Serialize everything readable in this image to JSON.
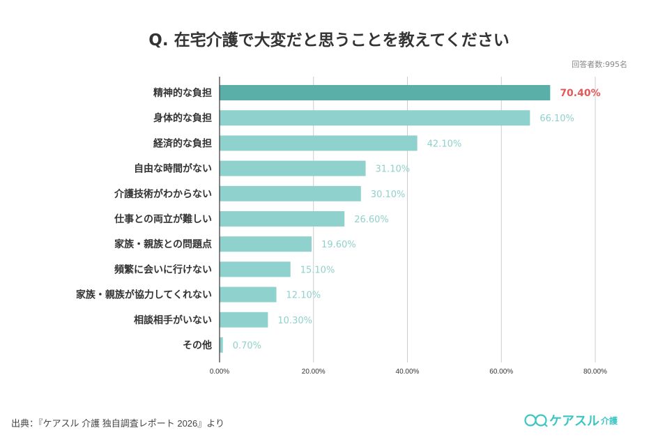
{
  "chart_data": {
    "type": "bar",
    "orientation": "horizontal",
    "title": "Q. 在宅介護で大変だと思うことを教えてください",
    "note": "回答者数:995名",
    "categories": [
      "精神的な負担",
      "身体的な負担",
      "経済的な負担",
      "自由な時間がない",
      "介護技術がわからない",
      "仕事との両立が難しい",
      "家族・親族との問題点",
      "頻繁に会いに行けない",
      "家族・親族が協力してくれない",
      "相談相手がいない",
      "その他"
    ],
    "values": [
      70.4,
      66.1,
      42.1,
      31.1,
      30.1,
      26.6,
      19.6,
      15.1,
      12.1,
      10.3,
      0.7
    ],
    "value_labels": [
      "70.40%",
      "66.10%",
      "42.10%",
      "31.10%",
      "30.10%",
      "26.60%",
      "19.60%",
      "15.10%",
      "12.10%",
      "10.30%",
      "0.70%"
    ],
    "xlim": [
      0,
      80
    ],
    "x_ticks": [
      "0.00%",
      "20.00%",
      "40.00%",
      "60.00%",
      "80.00%"
    ],
    "grid": true,
    "colors": {
      "highlight_bar": "#5aafa8",
      "bar": "#8fd1cc",
      "highlight_label": "#e05a5a",
      "label": "#8fd1cc"
    }
  },
  "footer": {
    "source": "出典：『ケアスル 介護 独自調査レポート 2026』より",
    "logo_main": "ケアスル",
    "logo_sub": "介護",
    "logo_icon": "two-smiling-faces-icon"
  }
}
